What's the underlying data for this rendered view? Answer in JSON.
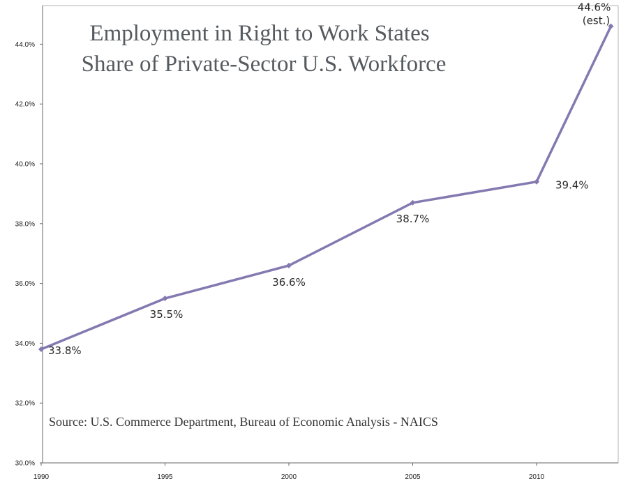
{
  "chart_data": {
    "type": "line",
    "title_lines": [
      "Employment in Right to Work States",
      "Share of Private-Sector U.S. Workforce"
    ],
    "source": "Source: U.S.  Commerce Department, Bureau of Economic Analysis - NAICS",
    "xlabel": "",
    "ylabel": "",
    "x_ticks": [
      "1990",
      "1995",
      "2000",
      "2005",
      "2010"
    ],
    "y_ticks": [
      "30.0%",
      "32.0%",
      "34.0%",
      "36.0%",
      "38.0%",
      "40.0%",
      "42.0%",
      "44.0%"
    ],
    "xlim": [
      1990,
      2013.5
    ],
    "ylim": [
      30,
      46.5
    ],
    "grid": false,
    "series": [
      {
        "color": "#8479b0",
        "points": [
          {
            "x": 1990,
            "y": 33.8,
            "label": "33.8%"
          },
          {
            "x": 1995,
            "y": 35.5,
            "label": "35.5%"
          },
          {
            "x": 2000,
            "y": 36.6,
            "label": "36.6%"
          },
          {
            "x": 2005,
            "y": 38.7,
            "label": "38.7%"
          },
          {
            "x": 2010,
            "y": 39.4,
            "label": "39.4%"
          },
          {
            "x": 2013,
            "y": 44.6,
            "label": "44.6%",
            "sublabel": "(est.)"
          }
        ]
      }
    ]
  }
}
